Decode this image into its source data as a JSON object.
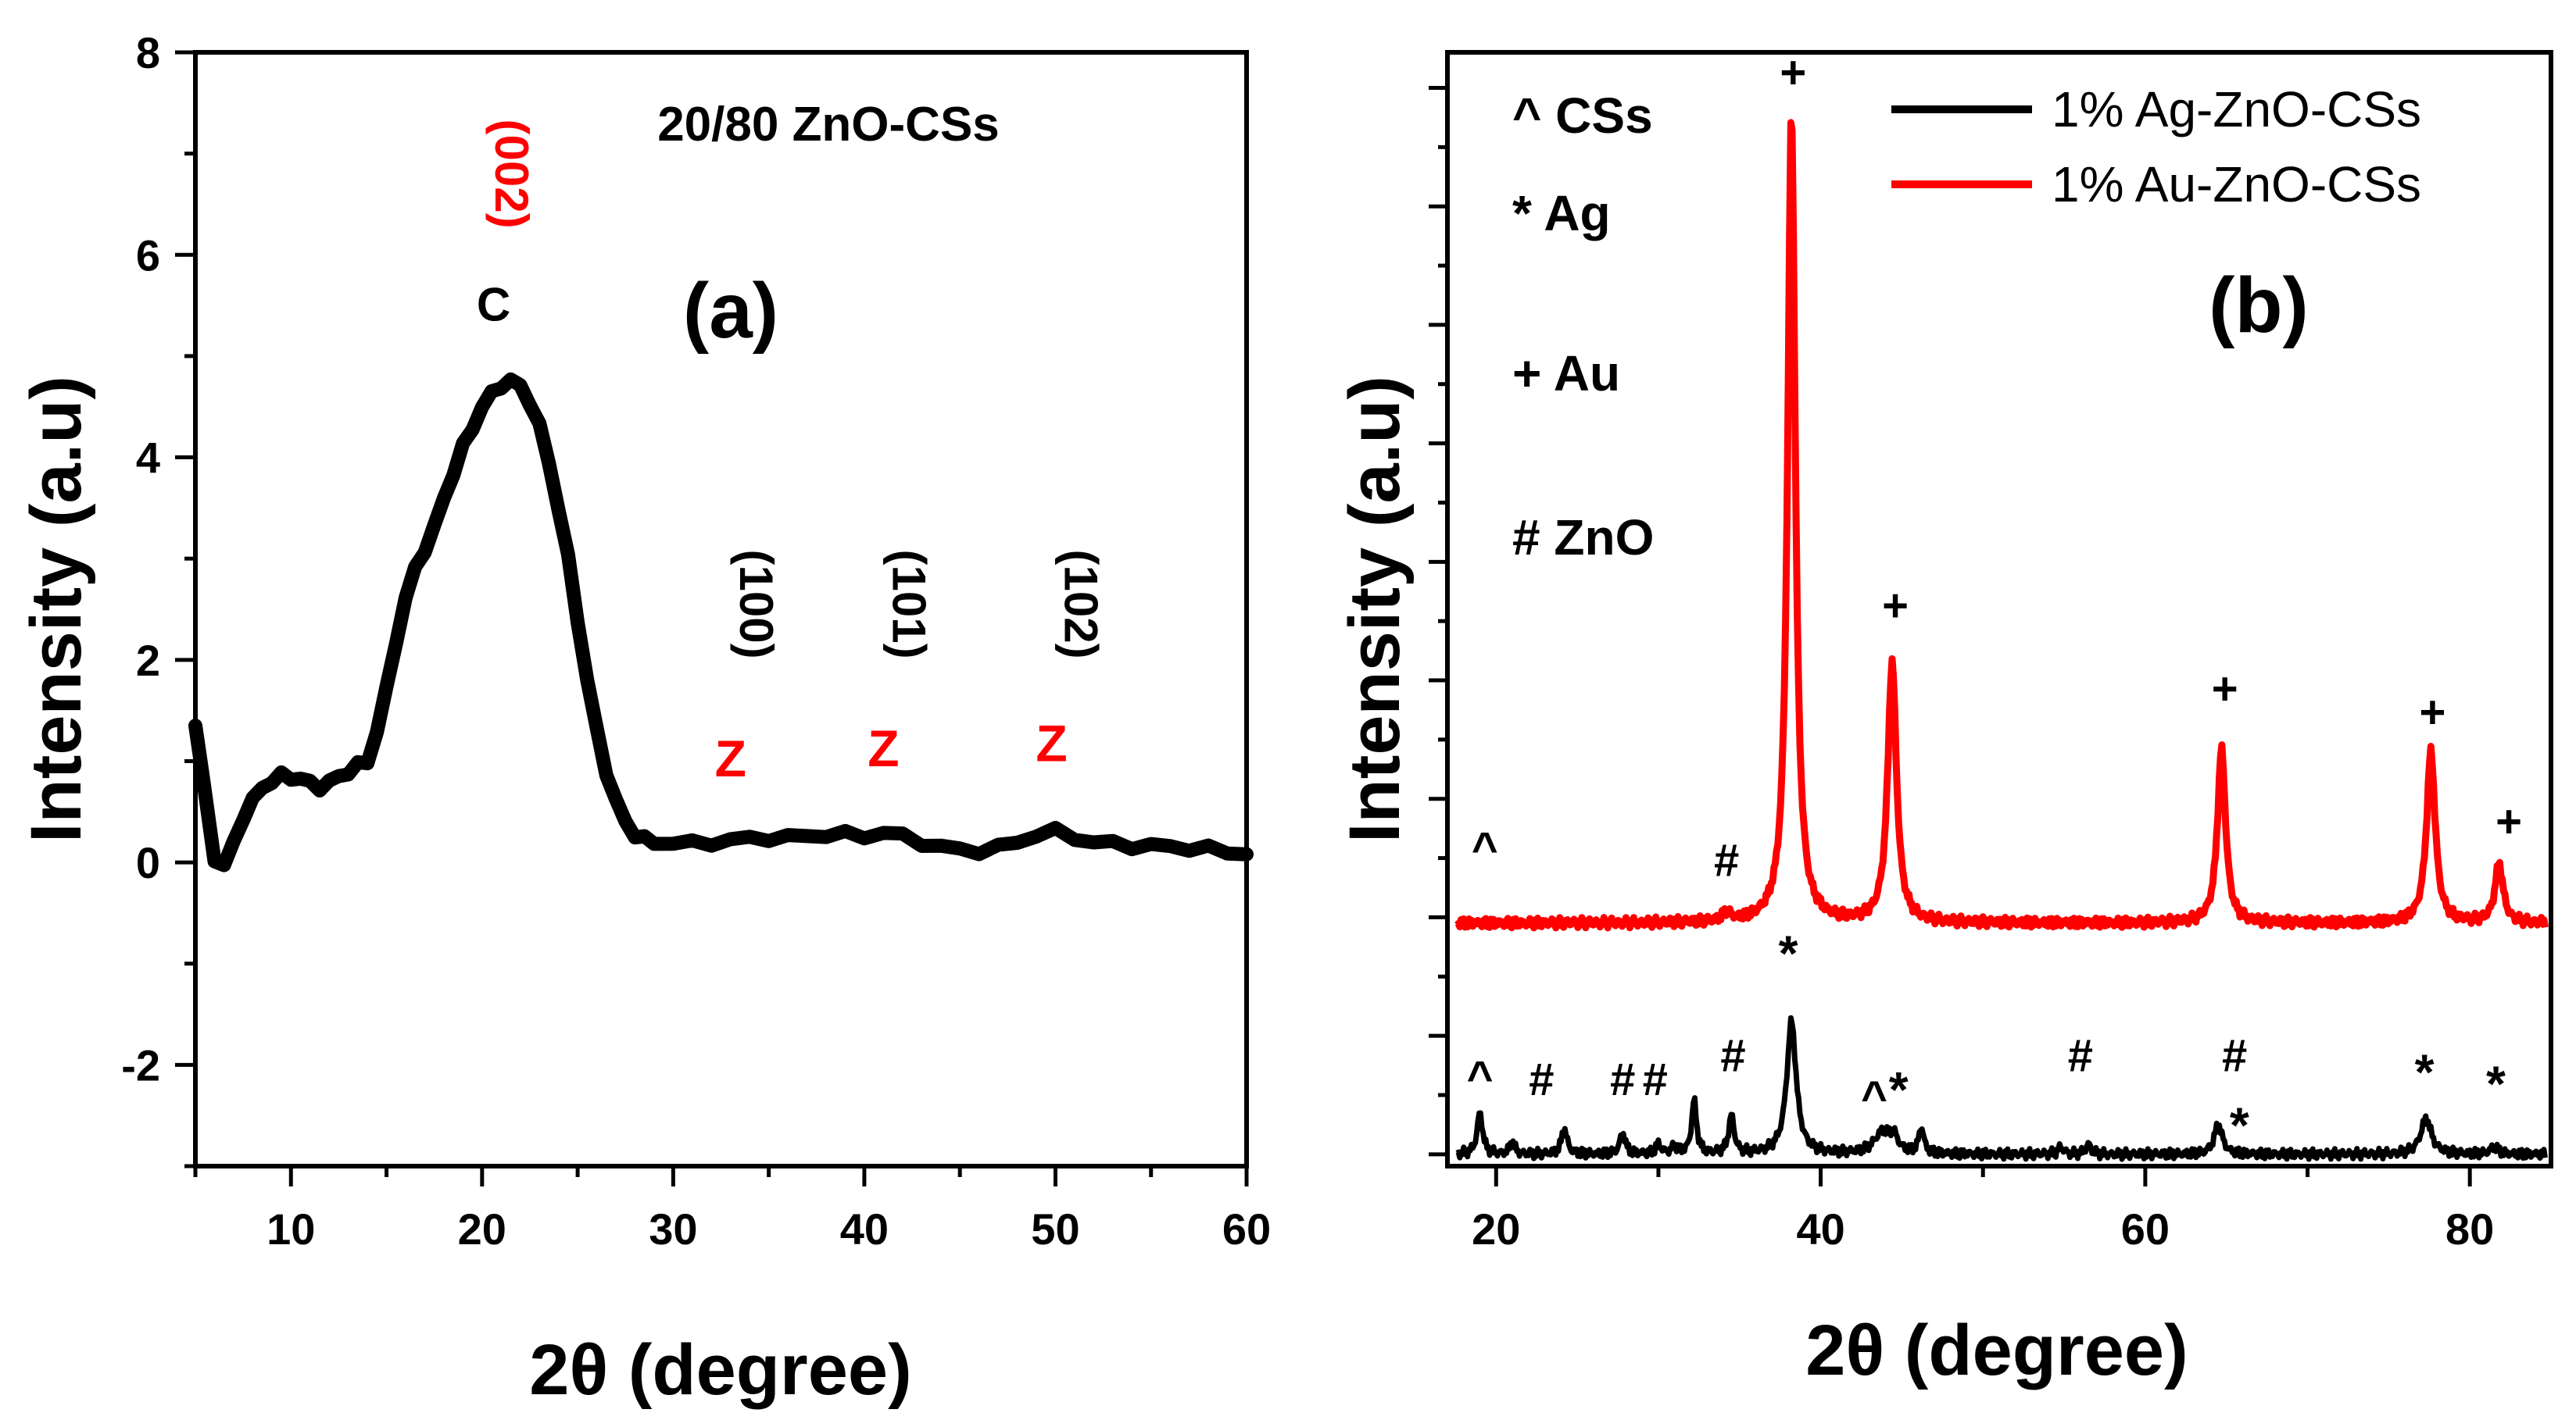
{
  "colors": {
    "black": "#000000",
    "red": "#ff0000"
  },
  "chart_data": [
    {
      "panel": "(a)",
      "type": "line",
      "title": "20/80 ZnO-CSs",
      "xlabel": "2θ (degree)",
      "ylabel": "Intensity (a.u)",
      "xlim": [
        5,
        60
      ],
      "ylim": [
        -3,
        8
      ],
      "xticks": [
        10,
        20,
        30,
        40,
        50,
        60
      ],
      "xtick_labels": [
        "10",
        "20",
        "30",
        "40",
        "50",
        "60"
      ],
      "yticks": [
        -2,
        0,
        2,
        4,
        6,
        8
      ],
      "ytick_labels": [
        "-2",
        "0",
        "2",
        "4",
        "6",
        "8"
      ],
      "series": [
        {
          "name": "20/80 ZnO-CSs",
          "color": "#000000",
          "x": [
            5,
            5.4,
            6,
            6.5,
            7,
            7.5,
            8,
            8.5,
            9,
            9.5,
            10,
            10.5,
            11,
            11.5,
            12,
            12.5,
            13,
            13.5,
            14,
            14.5,
            15,
            15.5,
            16,
            16.5,
            17,
            17.5,
            18,
            18.5,
            19,
            19.5,
            20,
            20.5,
            21,
            21.5,
            22,
            22.5,
            23,
            23.5,
            24,
            24.5,
            25,
            25.5,
            26,
            26.5,
            27,
            27.5,
            28,
            28.5,
            29,
            30,
            31,
            32,
            33,
            34,
            35,
            36,
            37,
            38,
            39,
            40,
            41,
            42,
            43,
            44,
            45,
            46,
            47,
            48,
            49,
            50,
            51,
            52,
            53,
            54,
            55,
            56,
            57,
            58,
            59,
            60
          ],
          "y": [
            1.35,
            0.8,
            0.05,
            -0.05,
            0.2,
            0.45,
            0.6,
            0.75,
            0.8,
            0.85,
            0.85,
            0.82,
            0.78,
            0.75,
            0.78,
            0.85,
            0.9,
            0.95,
            1.0,
            1.3,
            1.7,
            2.2,
            2.6,
            2.9,
            3.1,
            3.3,
            3.6,
            3.85,
            4.1,
            4.3,
            4.5,
            4.62,
            4.72,
            4.75,
            4.7,
            4.55,
            4.3,
            3.95,
            3.5,
            3.0,
            2.4,
            1.8,
            1.3,
            0.9,
            0.6,
            0.4,
            0.28,
            0.22,
            0.2,
            0.2,
            0.18,
            0.2,
            0.22,
            0.23,
            0.25,
            0.24,
            0.26,
            0.28,
            0.27,
            0.26,
            0.3,
            0.25,
            0.2,
            0.15,
            0.12,
            0.12,
            0.14,
            0.2,
            0.28,
            0.3,
            0.25,
            0.2,
            0.18,
            0.17,
            0.16,
            0.15,
            0.15,
            0.13,
            0.1,
            0.1
          ]
        }
      ],
      "annotations": [
        {
          "text": "(002)",
          "x": 20.7,
          "y": 6.8,
          "color": "#ff0000",
          "rotate": true
        },
        {
          "text": "C",
          "x": 20.6,
          "y": 5.35,
          "color": "#000000"
        },
        {
          "text": "(100)",
          "x": 33.5,
          "y": 2.55,
          "color": "#000000",
          "rotate": true
        },
        {
          "text": "Z",
          "x": 33.0,
          "y": 0.85,
          "color": "#ff0000"
        },
        {
          "text": "(101)",
          "x": 41.5,
          "y": 2.55,
          "color": "#000000",
          "rotate": true
        },
        {
          "text": "Z",
          "x": 41.0,
          "y": 0.95,
          "color": "#ff0000"
        },
        {
          "text": "(102)",
          "x": 50.5,
          "y": 2.55,
          "color": "#000000",
          "rotate": true
        },
        {
          "text": "Z",
          "x": 49.8,
          "y": 1.0,
          "color": "#ff0000"
        }
      ]
    },
    {
      "panel": "(b)",
      "type": "line",
      "xlabel": "2θ (degree)",
      "ylabel": "Intensity (a.u)",
      "xlim": [
        17,
        85
      ],
      "ylim": [
        -0.1,
        9.3
      ],
      "xticks": [
        20,
        40,
        60,
        80
      ],
      "xtick_labels": [
        "20",
        "40",
        "60",
        "80"
      ],
      "legend_position": "top-right",
      "series": [
        {
          "name": "1% Ag-ZnO-CSs",
          "color": "#000000",
          "baseline": 0,
          "peaks": [
            [
              19.0,
              0.35,
              0.2
            ],
            [
              21.0,
              0.1,
              0.18
            ],
            [
              24.2,
              0.22,
              0.2
            ],
            [
              27.8,
              0.18,
              0.2
            ],
            [
              30.0,
              0.08,
              0.2
            ],
            [
              31.0,
              0.06,
              0.2
            ],
            [
              32.2,
              0.45,
              0.18
            ],
            [
              34.5,
              0.32,
              0.2
            ],
            [
              38.2,
              1.12,
              0.35
            ],
            [
              43.8,
              0.18,
              0.6
            ],
            [
              44.5,
              0.12,
              0.3
            ],
            [
              46.2,
              0.22,
              0.18
            ],
            [
              54.8,
              0.06,
              0.2
            ],
            [
              56.5,
              0.08,
              0.2
            ],
            [
              64.5,
              0.25,
              0.3
            ],
            [
              77.3,
              0.3,
              0.4
            ],
            [
              81.5,
              0.06,
              0.3
            ]
          ]
        },
        {
          "name": "1% Au-ZnO-CSs",
          "color": "#ff0000",
          "baseline": 1.95,
          "peaks": [
            [
              34.2,
              0.07,
              0.3
            ],
            [
              38.2,
              6.85,
              0.28
            ],
            [
              44.4,
              2.2,
              0.32
            ],
            [
              64.7,
              1.47,
              0.3
            ],
            [
              77.6,
              1.45,
              0.32
            ],
            [
              81.8,
              0.5,
              0.3
            ]
          ]
        }
      ],
      "legend": [
        "1% Ag-ZnO-CSs",
        "1% Au-ZnO-CSs"
      ],
      "key": [
        "^ CSs",
        "* Ag",
        "+ Au",
        "# ZnO"
      ],
      "annotations": [
        {
          "text": "+",
          "x": 38.3,
          "y": 9.0
        },
        {
          "text": "+",
          "x": 44.6,
          "y": 4.5
        },
        {
          "text": "+",
          "x": 64.9,
          "y": 3.8
        },
        {
          "text": "+",
          "x": 77.7,
          "y": 3.6
        },
        {
          "text": "+",
          "x": 82.4,
          "y": 2.68
        },
        {
          "text": "^",
          "x": 19.3,
          "y": 2.45
        },
        {
          "text": "#",
          "x": 34.2,
          "y": 2.35
        },
        {
          "text": "*",
          "x": 38.0,
          "y": 1.55
        },
        {
          "text": "^",
          "x": 19.0,
          "y": 0.52
        },
        {
          "text": "#",
          "x": 22.8,
          "y": 0.5
        },
        {
          "text": "#",
          "x": 27.8,
          "y": 0.5
        },
        {
          "text": "#",
          "x": 29.8,
          "y": 0.5
        },
        {
          "text": "#",
          "x": 34.6,
          "y": 0.7
        },
        {
          "text": "^",
          "x": 43.3,
          "y": 0.35
        },
        {
          "text": "*",
          "x": 44.8,
          "y": 0.4
        },
        {
          "text": "#",
          "x": 56.0,
          "y": 0.7
        },
        {
          "text": "#",
          "x": 65.5,
          "y": 0.7
        },
        {
          "text": "*",
          "x": 65.8,
          "y": 0.1
        },
        {
          "text": "*",
          "x": 77.2,
          "y": 0.55
        },
        {
          "text": "*",
          "x": 81.6,
          "y": 0.45
        }
      ]
    }
  ]
}
